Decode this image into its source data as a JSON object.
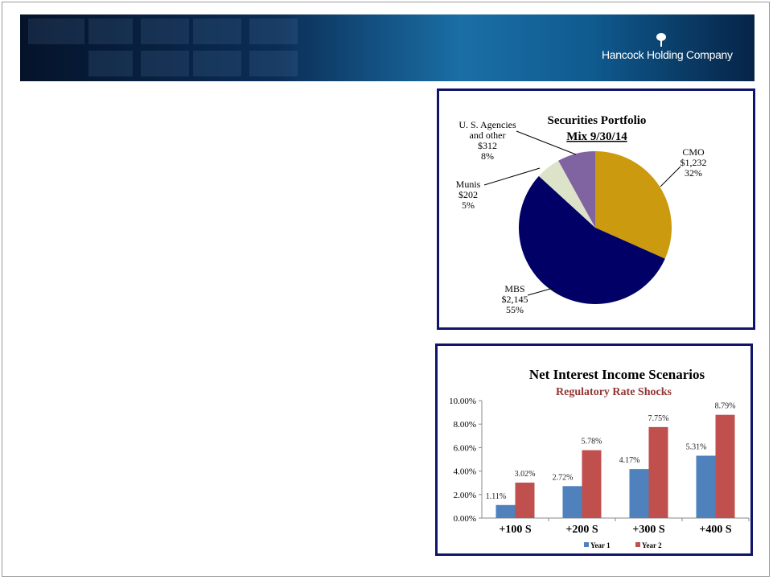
{
  "header": {
    "company": "Hancock Holding Company"
  },
  "chart_data": [
    {
      "type": "pie",
      "title": "Securities Portfolio",
      "subtitle": "Mix 9/30/14",
      "slices": [
        {
          "label": "CMO",
          "value_label": "$1,232",
          "pct_label": "32%",
          "value": 1232,
          "color": "#CC9A0F"
        },
        {
          "label": "MBS",
          "value_label": "$2,145",
          "pct_label": "55%",
          "value": 2145,
          "color": "#000066"
        },
        {
          "label": "Munis",
          "value_label": "$202",
          "pct_label": "5%",
          "value": 202,
          "color": "#DDE3C8"
        },
        {
          "label_lines": [
            "U. S. Agencies",
            "and other"
          ],
          "value_label": "$312",
          "pct_label": "8%",
          "value": 312,
          "color": "#8064A2"
        }
      ]
    },
    {
      "type": "bar",
      "title": "Net Interest Income Scenarios",
      "subtitle": "Regulatory Rate Shocks",
      "categories": [
        "+100 S",
        "+200 S",
        "+300 S",
        "+400 S"
      ],
      "series": [
        {
          "name": "Year 1",
          "color": "#4F81BD",
          "values": [
            1.11,
            2.72,
            4.17,
            5.31
          ],
          "labels": [
            "1.11%",
            "2.72%",
            "4.17%",
            "5.31%"
          ]
        },
        {
          "name": "Year 2",
          "color": "#C0504D",
          "values": [
            3.02,
            5.78,
            7.75,
            8.79
          ],
          "labels": [
            "3.02%",
            "5.78%",
            "7.75%",
            "8.79%"
          ]
        }
      ],
      "yticks": [
        "0.00%",
        "2.00%",
        "4.00%",
        "6.00%",
        "8.00%",
        "10.00%"
      ],
      "ylim": [
        0,
        10
      ],
      "legend": "bottom"
    }
  ]
}
